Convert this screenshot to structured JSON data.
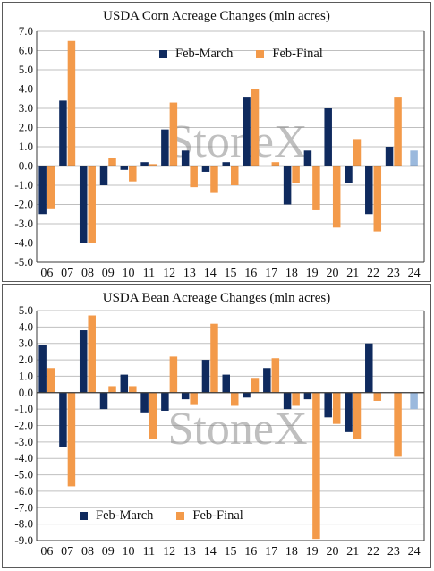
{
  "colors": {
    "feb_march": "#0f2a5e",
    "feb_final": "#f39a4a",
    "latest": "#9bb9dd",
    "grid": "#bfbfbf",
    "axis": "#3a3a3a"
  },
  "watermark": "StoneX",
  "chart_data": [
    {
      "type": "bar",
      "title": "USDA Corn Acreage Changes (mln acres)",
      "categories": [
        "06",
        "07",
        "08",
        "09",
        "10",
        "11",
        "12",
        "13",
        "14",
        "15",
        "16",
        "17",
        "18",
        "19",
        "20",
        "21",
        "22",
        "23",
        "24"
      ],
      "ylim": [
        -5.0,
        7.0
      ],
      "yticks": [
        "-5.0",
        "-4.0",
        "-3.0",
        "-2.0",
        "-1.0",
        "0.0",
        "1.0",
        "2.0",
        "3.0",
        "4.0",
        "5.0",
        "6.0",
        "7.0"
      ],
      "legend_position": "top-center",
      "series": [
        {
          "name": "Feb-March",
          "values": [
            -2.5,
            3.4,
            -4.0,
            -1.0,
            -0.2,
            0.2,
            1.9,
            0.8,
            -0.3,
            0.2,
            3.6,
            0.0,
            -2.0,
            0.8,
            3.0,
            -0.9,
            -2.5,
            1.0,
            0.8
          ]
        },
        {
          "name": "Feb-Final",
          "values": [
            -2.2,
            6.5,
            -4.0,
            0.4,
            -0.8,
            0.1,
            3.3,
            -1.1,
            -1.4,
            -1.0,
            4.0,
            0.2,
            -0.9,
            -2.3,
            -3.2,
            1.4,
            -3.4,
            3.6,
            null
          ]
        }
      ]
    },
    {
      "type": "bar",
      "title": "USDA Bean Acreage Changes (mln acres)",
      "categories": [
        "06",
        "07",
        "08",
        "09",
        "10",
        "11",
        "12",
        "13",
        "14",
        "15",
        "16",
        "17",
        "18",
        "19",
        "20",
        "21",
        "22",
        "23",
        "24"
      ],
      "ylim": [
        -9.0,
        5.0
      ],
      "yticks": [
        "-9.0",
        "-8.0",
        "-7.0",
        "-6.0",
        "-5.0",
        "-4.0",
        "-3.0",
        "-2.0",
        "-1.0",
        "0.0",
        "1.0",
        "2.0",
        "3.0",
        "4.0",
        "5.0"
      ],
      "legend_position": "bottom-left",
      "series": [
        {
          "name": "Feb-March",
          "values": [
            2.9,
            -3.3,
            3.8,
            -1.0,
            1.1,
            -1.2,
            -1.1,
            -0.4,
            2.0,
            1.1,
            -0.3,
            1.5,
            -1.0,
            -0.4,
            -1.5,
            -2.4,
            3.0,
            0.0,
            -1.0
          ]
        },
        {
          "name": "Feb-Final",
          "values": [
            1.5,
            -5.7,
            4.7,
            0.4,
            0.4,
            -2.8,
            2.2,
            -0.7,
            4.2,
            -0.8,
            0.9,
            2.1,
            -0.8,
            -8.9,
            -1.9,
            -2.8,
            -0.5,
            -3.9,
            null
          ]
        }
      ]
    }
  ]
}
